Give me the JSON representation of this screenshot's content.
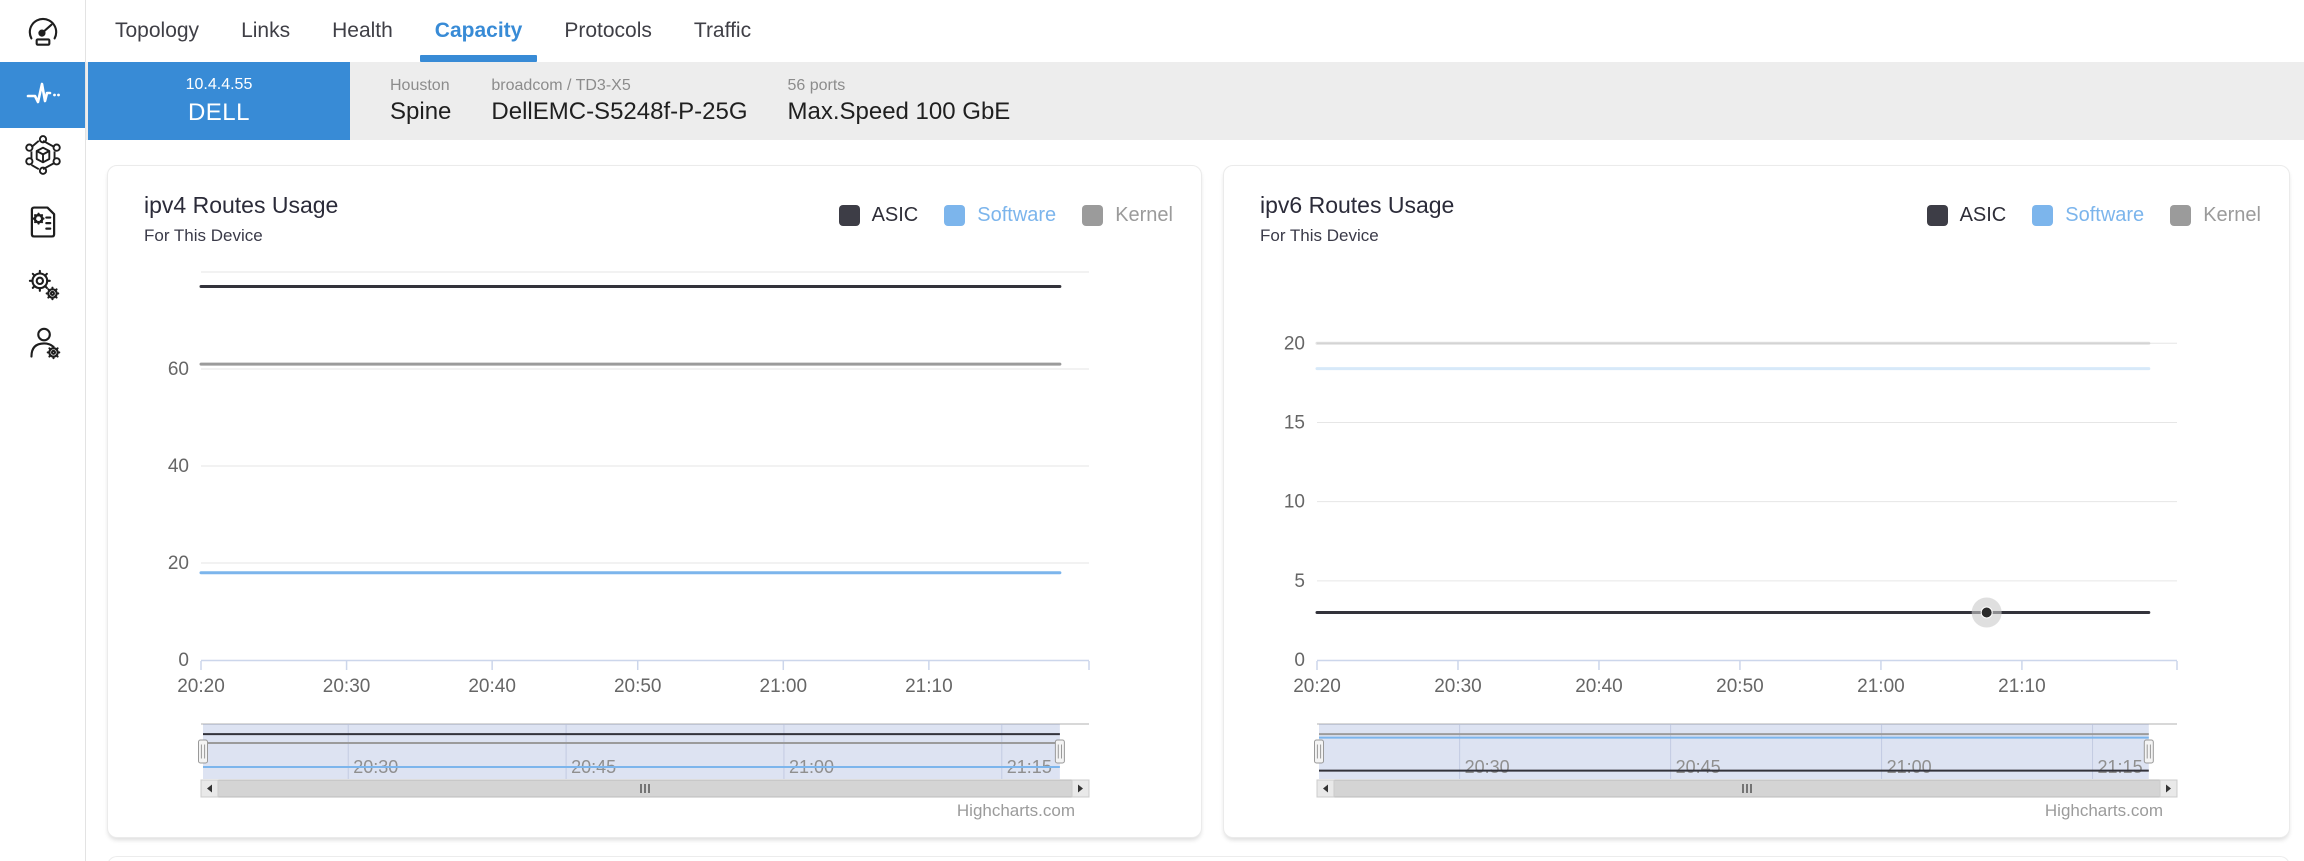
{
  "header": {
    "tabs": [
      {
        "label": "Topology"
      },
      {
        "label": "Links"
      },
      {
        "label": "Health"
      },
      {
        "label": "Capacity"
      },
      {
        "label": "Protocols"
      },
      {
        "label": "Traffic"
      }
    ],
    "active_tab": "Capacity"
  },
  "sidebar": {
    "items": [
      {
        "icon": "gauge-icon",
        "active": false
      },
      {
        "icon": "pulse-icon",
        "active": true
      },
      {
        "icon": "topology-icon",
        "active": false
      },
      {
        "icon": "document-gear-icon",
        "active": false
      },
      {
        "icon": "gears-icon",
        "active": false
      },
      {
        "icon": "user-gear-icon",
        "active": false
      }
    ]
  },
  "device_bar": {
    "ip": "10.4.4.55",
    "name": "DELL",
    "location": "Houston",
    "role": "Spine",
    "asic": "broadcom / TD3-X5",
    "model": "DellEMC-S5248f-P-25G",
    "ports": "56 ports",
    "speed": "Max.Speed 100 GbE"
  },
  "colors": {
    "accent": "#388bd6",
    "asic": "#33333b",
    "software": "#7cb5ec",
    "kernel": "#9b9b9b",
    "grid": "#e6e6e6",
    "axis_line": "#ccd6eb",
    "navigator_fill": "#667fc4",
    "device_bar_bg": "#ededed"
  },
  "chart_data": [
    {
      "type": "line",
      "title": "ipv4 Routes Usage",
      "subtitle": "For This Device",
      "credit": "Highcharts.com",
      "legend": [
        {
          "label": "ASIC",
          "color": "#3d3d46",
          "text_color": "#2e2e38"
        },
        {
          "label": "Software",
          "color": "#7cb5ec",
          "text_color": "#7cb5ec"
        },
        {
          "label": "Kernel",
          "color": "#9b9b9b",
          "text_color": "#9b9b9b"
        }
      ],
      "ylim": [
        0,
        80
      ],
      "y_gridlines": [
        0,
        20,
        40,
        60,
        80
      ],
      "y_tick_labels": [
        0,
        20,
        40,
        60
      ],
      "grid": true,
      "x_axis": {
        "tick_labels": [
          "20:20",
          "20:30",
          "20:40",
          "20:50",
          "21:00",
          "21:10"
        ],
        "tick_min": [
          0,
          10,
          20,
          30,
          40,
          50
        ],
        "total_min": 61,
        "series_min": 59,
        "start": "20:20",
        "end": "21:19"
      },
      "series": [
        {
          "name": "Kernel",
          "color": "#9b9b9b",
          "value": 61,
          "opacity": 1,
          "shape": "constant"
        },
        {
          "name": "Software",
          "color": "#7cb5ec",
          "value": 18,
          "opacity": 1,
          "shape": "constant"
        },
        {
          "name": "ASIC",
          "color": "#33333b",
          "value": 77,
          "opacity": 1,
          "shape": "constant"
        }
      ],
      "navigator": {
        "labels": [
          "20:30",
          "20:45",
          "21:00",
          "21:15"
        ],
        "label_times_min": [
          10,
          25,
          40,
          55
        ]
      }
    },
    {
      "type": "line",
      "title": "ipv6 Routes Usage",
      "subtitle": "For This Device",
      "credit": "Highcharts.com",
      "legend": [
        {
          "label": "ASIC",
          "color": "#3d3d46",
          "text_color": "#2e2e38"
        },
        {
          "label": "Software",
          "color": "#7cb5ec",
          "text_color": "#7cb5ec"
        },
        {
          "label": "Kernel",
          "color": "#9b9b9b",
          "text_color": "#9b9b9b"
        }
      ],
      "ylim": [
        0,
        24.5
      ],
      "y_gridlines": [
        0,
        5,
        10,
        15,
        20
      ],
      "y_tick_labels": [
        0,
        5,
        10,
        15,
        20
      ],
      "grid": true,
      "x_axis": {
        "tick_labels": [
          "20:20",
          "20:30",
          "20:40",
          "20:50",
          "21:00",
          "21:10"
        ],
        "tick_min": [
          0,
          10,
          20,
          30,
          40,
          50
        ],
        "total_min": 61,
        "series_min": 59,
        "start": "20:20",
        "end": "21:19"
      },
      "series": [
        {
          "name": "Kernel",
          "color": "#9b9b9b",
          "value": 20,
          "opacity": 0.3,
          "shape": "constant"
        },
        {
          "name": "Software",
          "color": "#7cb5ec",
          "value": 18.4,
          "opacity": 0.3,
          "shape": "constant"
        },
        {
          "name": "ASIC",
          "color": "#33333b",
          "value": 3,
          "opacity": 1,
          "shape": "constant",
          "marker": {
            "time": "21:07",
            "time_min": 47.5,
            "value": 3
          }
        }
      ],
      "navigator": {
        "labels": [
          "20:30",
          "20:45",
          "21:00",
          "21:15"
        ],
        "label_times_min": [
          10,
          25,
          40,
          55
        ]
      }
    }
  ]
}
